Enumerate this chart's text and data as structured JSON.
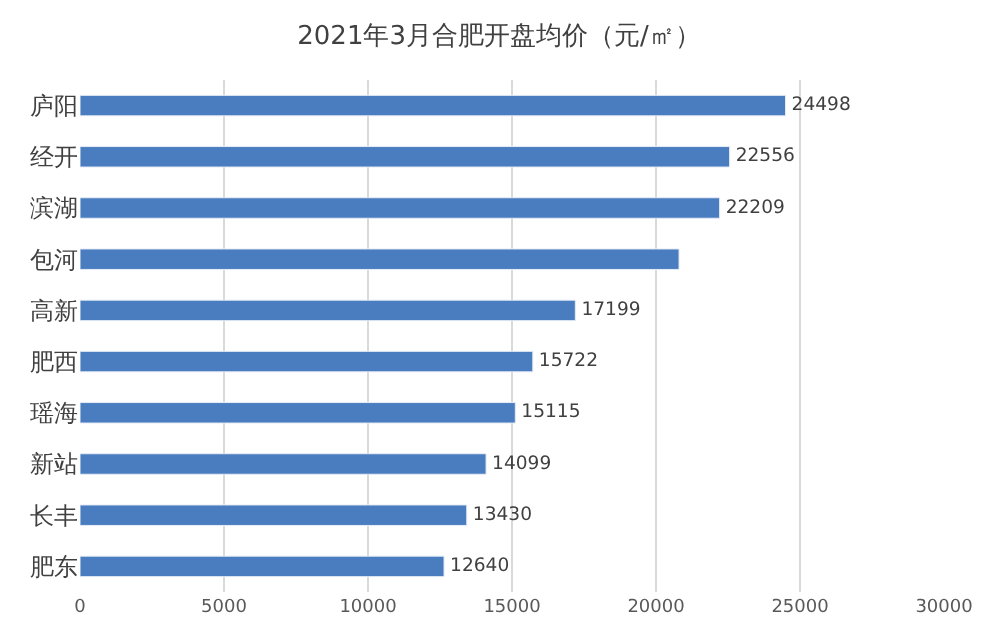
{
  "chart_data": {
    "type": "bar",
    "orientation": "horizontal",
    "title": "2021年3月合肥开盘均价（元/㎡）",
    "categories": [
      "庐阳",
      "经开",
      "滨湖",
      "包河",
      "高新",
      "肥西",
      "瑶海",
      "新站",
      "长丰",
      "肥东"
    ],
    "values": [
      24498,
      22556,
      22209,
      20800,
      17199,
      15722,
      15115,
      14099,
      13430,
      12640
    ],
    "value_labels": [
      "24498",
      "22556",
      "22209",
      null,
      "17199",
      "15722",
      "15115",
      "14099",
      "13430",
      "12640"
    ],
    "color": "#4a7dbf",
    "xlim": [
      0,
      30000
    ],
    "xticks": [
      0,
      5000,
      10000,
      15000,
      20000,
      25000,
      30000
    ],
    "grid": "x",
    "legend": false
  }
}
